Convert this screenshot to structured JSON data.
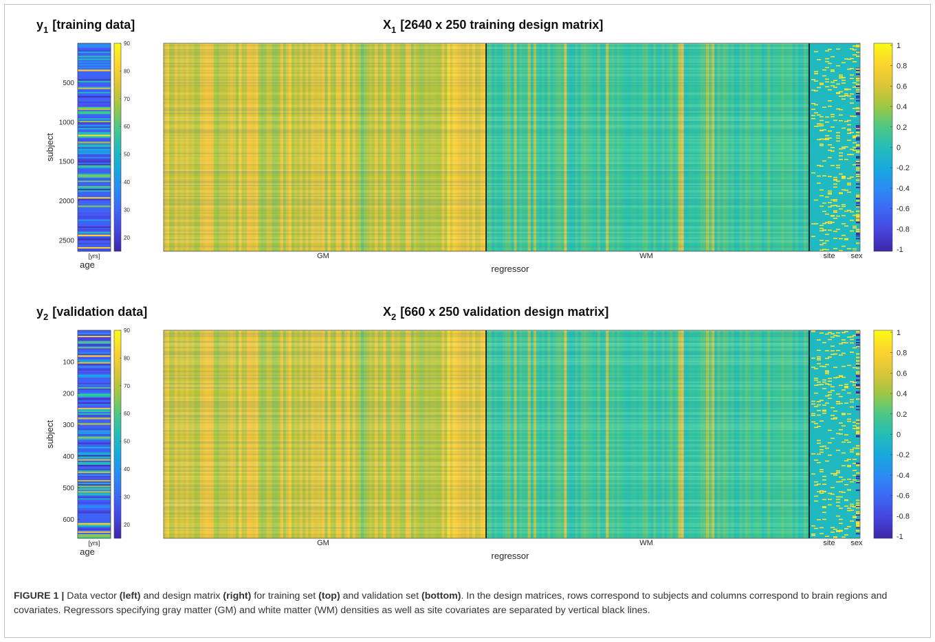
{
  "chart_data": [
    {
      "type": "heatmap",
      "panel": "top",
      "vector": {
        "title_var": "y",
        "title_sub": "1",
        "title_text": "[training data]",
        "ylabel": "subject",
        "unit_label": "[yrs]",
        "xlabel": "age",
        "ylim": [
          1,
          2640
        ],
        "yticks": [
          "500",
          "1000",
          "1500",
          "2000",
          "2500"
        ],
        "ytick_values": [
          500,
          1000,
          1500,
          2000,
          2500
        ],
        "colorbar_range": [
          15,
          90
        ],
        "colorbar_ticks": [
          "90",
          "80",
          "70",
          "60",
          "50",
          "40",
          "30",
          "20"
        ],
        "colorbar_tick_values": [
          90,
          80,
          70,
          60,
          50,
          40,
          30,
          20
        ]
      },
      "matrix": {
        "title_var": "X",
        "title_sub": "1",
        "title_text": "[2640 x 250 training design matrix]",
        "rows": 2640,
        "cols": 250,
        "xlabel": "regressor",
        "groups": [
          "GM",
          "WM",
          "site",
          "sex"
        ],
        "colorbar_range": [
          -1,
          1
        ],
        "colorbar_ticks": [
          "1",
          "0.8",
          "0.6",
          "0.4",
          "0.2",
          "0",
          "-0.2",
          "-0.4",
          "-0.6",
          "-0.8",
          "-1"
        ],
        "colorbar_tick_values": [
          1,
          0.8,
          0.6,
          0.4,
          0.2,
          0,
          -0.2,
          -0.4,
          -0.6,
          -0.8,
          -1
        ]
      }
    },
    {
      "type": "heatmap",
      "panel": "bottom",
      "vector": {
        "title_var": "y",
        "title_sub": "2",
        "title_text": "[validation data]",
        "ylabel": "subject",
        "unit_label": "[yrs]",
        "xlabel": "age",
        "ylim": [
          1,
          660
        ],
        "yticks": [
          "100",
          "200",
          "300",
          "400",
          "500",
          "600"
        ],
        "ytick_values": [
          100,
          200,
          300,
          400,
          500,
          600
        ],
        "colorbar_range": [
          15,
          90
        ],
        "colorbar_ticks": [
          "90",
          "80",
          "70",
          "60",
          "50",
          "40",
          "30",
          "20"
        ],
        "colorbar_tick_values": [
          90,
          80,
          70,
          60,
          50,
          40,
          30,
          20
        ]
      },
      "matrix": {
        "title_var": "X",
        "title_sub": "2",
        "title_text": "[660 x 250 validation design matrix]",
        "rows": 660,
        "cols": 250,
        "xlabel": "regressor",
        "groups": [
          "GM",
          "WM",
          "site",
          "sex"
        ],
        "colorbar_range": [
          -1,
          1
        ],
        "colorbar_ticks": [
          "1",
          "0.8",
          "0.6",
          "0.4",
          "0.2",
          "0",
          "-0.2",
          "-0.4",
          "-0.6",
          "-0.8",
          "-1"
        ],
        "colorbar_tick_values": [
          1,
          0.8,
          0.6,
          0.4,
          0.2,
          0,
          -0.2,
          -0.4,
          -0.6,
          -0.8,
          -1
        ]
      }
    }
  ],
  "caption": {
    "label": "FIGURE 1 |",
    "parts": [
      {
        "t": " Data vector ",
        "b": false
      },
      {
        "t": "(left)",
        "b": true
      },
      {
        "t": " and design matrix ",
        "b": false
      },
      {
        "t": "(right)",
        "b": true
      },
      {
        "t": " for training set ",
        "b": false
      },
      {
        "t": "(top)",
        "b": true
      },
      {
        "t": " and validation set ",
        "b": false
      },
      {
        "t": "(bottom)",
        "b": true
      },
      {
        "t": ". In the design matrices, rows correspond to subjects and columns correspond to brain regions and covariates. Regressors specifying gray matter (GM) and white matter (WM) densities as well as site covariates are separated by vertical black lines.",
        "b": false
      }
    ]
  }
}
